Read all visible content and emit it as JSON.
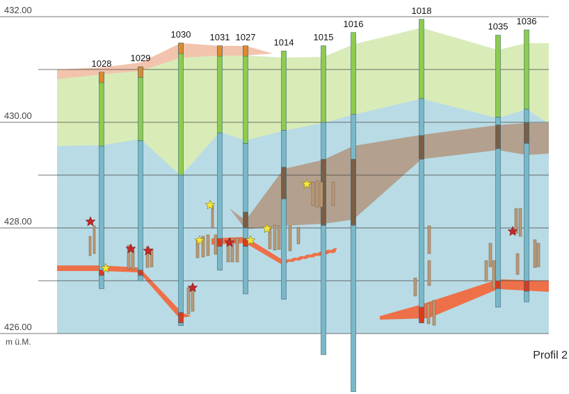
{
  "figure": {
    "title": "Profil 2",
    "unit_label": "m ü.M."
  },
  "elevation_axis": {
    "ticks": [
      {
        "value": 432,
        "label": "432.00"
      },
      {
        "value": 431,
        "label": ""
      },
      {
        "value": 430,
        "label": "430.00"
      },
      {
        "value": 429,
        "label": ""
      },
      {
        "value": 428,
        "label": "428.00"
      },
      {
        "value": 427,
        "label": ""
      },
      {
        "value": 426,
        "label": "426.00"
      }
    ]
  },
  "colors": {
    "topsoil": "#f2c4ad",
    "loam": "#d9ecb8",
    "groundwater_zone": "#b9dbe5",
    "organic_layer": "#b3a08e",
    "red_layer": "#ee7048",
    "borehole_upper": "#8ecb4e",
    "borehole_lower": "#7ab8c8",
    "borehole_cap": "#e0892b",
    "borehole_brown": "#7b5e44",
    "pile": "#b89a78",
    "star_yellow": "#f5e63a",
    "star_red": "#c62828"
  },
  "boreholes": [
    {
      "id": "1028",
      "top": 430.95,
      "bottom": 426.85,
      "green_to": 429.55,
      "cap_to": 430.75
    },
    {
      "id": "1029",
      "top": 431.05,
      "bottom": 427.0,
      "green_to": 429.65,
      "cap_to": 430.85
    },
    {
      "id": "1030",
      "top": 431.5,
      "bottom": 426.15,
      "green_to": 429.0,
      "cap_to": 431.3
    },
    {
      "id": "1031",
      "top": 431.45,
      "bottom": 427.2,
      "green_to": 429.8,
      "cap_to": 431.25
    },
    {
      "id": "1027",
      "top": 431.45,
      "bottom": 426.75,
      "green_to": 429.6,
      "cap_to": 431.25
    },
    {
      "id": "1014",
      "top": 431.35,
      "bottom": 426.65,
      "green_to": 429.85
    },
    {
      "id": "1015",
      "top": 431.45,
      "bottom": 425.6,
      "green_to": 430.0
    },
    {
      "id": "1016",
      "top": 431.7,
      "bottom": 424.9,
      "green_to": 430.15
    },
    {
      "id": "1018",
      "top": 431.95,
      "bottom": 426.25,
      "green_to": 430.45
    },
    {
      "id": "1035",
      "top": 431.65,
      "bottom": 426.5,
      "green_to": 430.1
    },
    {
      "id": "1036",
      "top": 431.75,
      "bottom": 426.6,
      "green_to": 430.25
    }
  ]
}
